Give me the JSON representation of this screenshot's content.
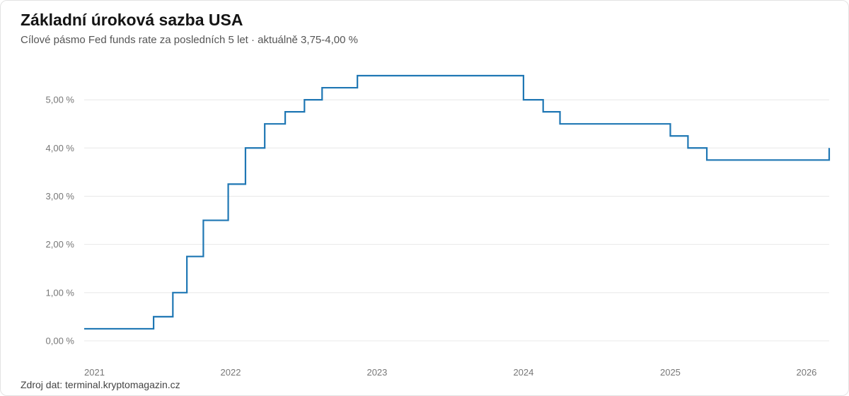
{
  "header": {
    "title": "Základní úroková sazba USA",
    "subtitle": "Cílové pásmo Fed funds rate za posledních 5 let · aktuálně 3,75-4,00 %"
  },
  "footer": {
    "source": "Zdroj dat: terminal.kryptomagazin.cz"
  },
  "colors": {
    "line": "#1f77b4",
    "grid": "#e8e8e8",
    "tick_text": "#777777"
  },
  "chart_data": {
    "type": "line",
    "step": true,
    "title": "Základní úroková sazba USA",
    "subtitle": "Cílové pásmo Fed funds rate za posledních 5 let · aktuálně 3,75-4,00 %",
    "xlabel": "",
    "ylabel": "",
    "xlim": [
      "2021-01-01",
      "2026-02-01"
    ],
    "ylim": [
      0,
      5.5
    ],
    "grid": true,
    "legend": "none",
    "y_ticks": [
      {
        "value": 0,
        "label": "0,00 %"
      },
      {
        "value": 1,
        "label": "1,00 %"
      },
      {
        "value": 2,
        "label": "2,00 %"
      },
      {
        "value": 3,
        "label": "3,00 %"
      },
      {
        "value": 4,
        "label": "4,00 %"
      },
      {
        "value": 5,
        "label": "5,00 %"
      }
    ],
    "x_ticks": [
      {
        "value": "2021-01-01",
        "label": "2021"
      },
      {
        "value": "2022-01-01",
        "label": "2022"
      },
      {
        "value": "2023-01-01",
        "label": "2023"
      },
      {
        "value": "2024-01-01",
        "label": "2024"
      },
      {
        "value": "2025-01-01",
        "label": "2025"
      },
      {
        "value": "2026-01-01",
        "label": "2026"
      }
    ],
    "series": [
      {
        "points": [
          {
            "x": "2021-01-01",
            "y": 0.25
          },
          {
            "x": "2021-06-23",
            "y": 0.5
          },
          {
            "x": "2021-08-10",
            "y": 1.0
          },
          {
            "x": "2021-09-14",
            "y": 1.75
          },
          {
            "x": "2021-10-25",
            "y": 2.5
          },
          {
            "x": "2021-12-26",
            "y": 3.25
          },
          {
            "x": "2022-02-07",
            "y": 4.0
          },
          {
            "x": "2022-03-27",
            "y": 4.5
          },
          {
            "x": "2022-05-17",
            "y": 4.75
          },
          {
            "x": "2022-07-04",
            "y": 5.0
          },
          {
            "x": "2022-08-17",
            "y": 5.25
          },
          {
            "x": "2022-11-13",
            "y": 5.5
          },
          {
            "x": "2024-01-01",
            "y": 5.0
          },
          {
            "x": "2024-02-19",
            "y": 4.75
          },
          {
            "x": "2024-04-01",
            "y": 4.5
          },
          {
            "x": "2025-01-01",
            "y": 4.25
          },
          {
            "x": "2025-02-14",
            "y": 4.0
          },
          {
            "x": "2025-04-02",
            "y": 3.75
          },
          {
            "x": "2026-02-01",
            "y": 4.0
          }
        ]
      }
    ]
  }
}
